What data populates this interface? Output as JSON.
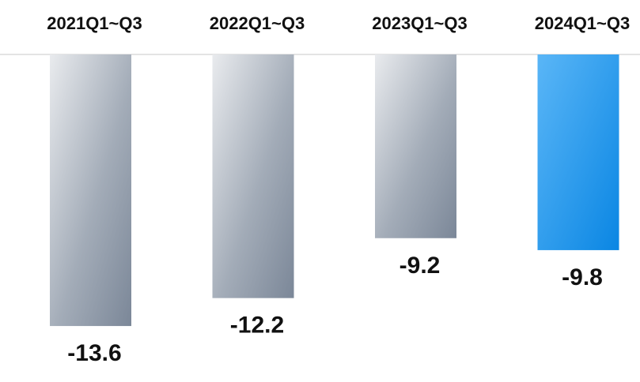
{
  "chart_data": {
    "type": "bar",
    "categories": [
      "2021Q1~Q3",
      "2022Q1~Q3",
      "2023Q1~Q3",
      "2024Q1~Q3"
    ],
    "values": [
      -13.6,
      -12.2,
      -9.2,
      -9.8
    ],
    "value_labels": [
      "-13.6",
      "-12.2",
      "-9.2",
      "-9.8"
    ],
    "title": "",
    "xlabel": "",
    "ylabel": "",
    "ylim": [
      -14,
      0
    ],
    "grid": false,
    "legend": "none",
    "category_axis_position": "top",
    "colors": {
      "default_bar_light": "#e9ebee",
      "default_bar_dark": "#7b8798",
      "highlight_bar_light": "#5ab6f7",
      "highlight_bar_dark": "#0a86e3",
      "baseline": "#e4e4e4",
      "text": "#111111"
    },
    "highlight_index": 3
  }
}
